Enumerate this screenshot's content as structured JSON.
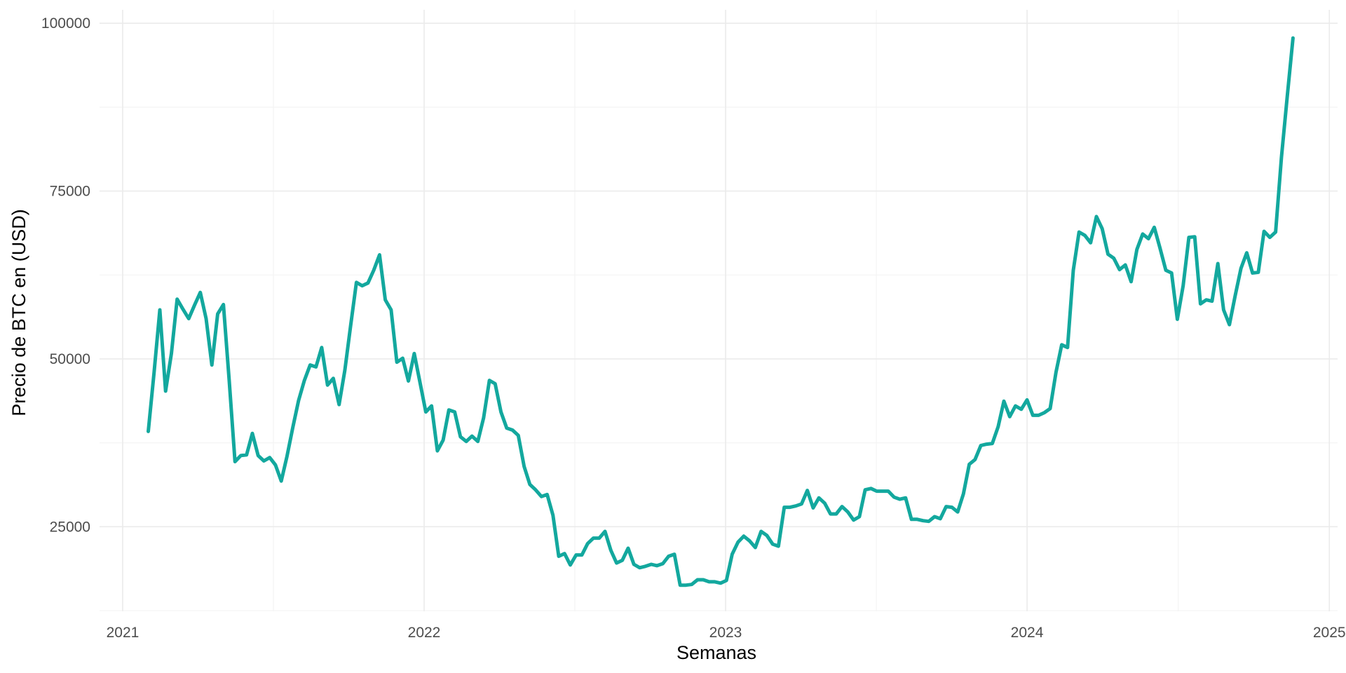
{
  "chart_data": {
    "type": "line",
    "title": "",
    "xlabel": "Semanas",
    "ylabel": "Precio de BTC en (USD)",
    "xlim": [
      "2020-12-04",
      "2025-01-11"
    ],
    "ylim": [
      12400,
      102000
    ],
    "x_ticks": [
      "2021",
      "2022",
      "2023",
      "2024",
      "2025"
    ],
    "y_ticks": [
      "25000",
      "50000",
      "75000",
      "100000"
    ],
    "grid": true,
    "legend": "none",
    "line_color": "#13A89E",
    "series": [
      {
        "points": [
          [
            "2021-02-01",
            39200
          ],
          [
            "2021-02-08",
            48000
          ],
          [
            "2021-02-15",
            57300
          ],
          [
            "2021-02-22",
            45200
          ],
          [
            "2021-03-01",
            50800
          ],
          [
            "2021-03-08",
            58900
          ],
          [
            "2021-03-15",
            57400
          ],
          [
            "2021-03-22",
            56000
          ],
          [
            "2021-03-29",
            58000
          ],
          [
            "2021-04-05",
            59900
          ],
          [
            "2021-04-12",
            56000
          ],
          [
            "2021-04-19",
            49100
          ],
          [
            "2021-04-26",
            56700
          ],
          [
            "2021-05-03",
            58100
          ],
          [
            "2021-05-10",
            46700
          ],
          [
            "2021-05-17",
            34700
          ],
          [
            "2021-05-24",
            35600
          ],
          [
            "2021-05-31",
            35700
          ],
          [
            "2021-06-07",
            38900
          ],
          [
            "2021-06-14",
            35600
          ],
          [
            "2021-06-21",
            34800
          ],
          [
            "2021-06-28",
            35300
          ],
          [
            "2021-07-05",
            34200
          ],
          [
            "2021-07-12",
            31800
          ],
          [
            "2021-07-19",
            35500
          ],
          [
            "2021-07-26",
            39800
          ],
          [
            "2021-08-02",
            43800
          ],
          [
            "2021-08-09",
            46800
          ],
          [
            "2021-08-16",
            49100
          ],
          [
            "2021-08-23",
            48800
          ],
          [
            "2021-08-30",
            51700
          ],
          [
            "2021-09-06",
            46100
          ],
          [
            "2021-09-13",
            47100
          ],
          [
            "2021-09-20",
            43200
          ],
          [
            "2021-09-27",
            48300
          ],
          [
            "2021-10-04",
            54900
          ],
          [
            "2021-10-11",
            61400
          ],
          [
            "2021-10-18",
            60900
          ],
          [
            "2021-10-25",
            61300
          ],
          [
            "2021-11-01",
            63200
          ],
          [
            "2021-11-08",
            65500
          ],
          [
            "2021-11-15",
            58800
          ],
          [
            "2021-11-22",
            57300
          ],
          [
            "2021-11-29",
            49500
          ],
          [
            "2021-12-06",
            50100
          ],
          [
            "2021-12-13",
            46700
          ],
          [
            "2021-12-20",
            50800
          ],
          [
            "2021-12-27",
            46500
          ],
          [
            "2022-01-03",
            42100
          ],
          [
            "2022-01-10",
            43000
          ],
          [
            "2022-01-17",
            36300
          ],
          [
            "2022-01-24",
            37900
          ],
          [
            "2022-01-31",
            42400
          ],
          [
            "2022-02-07",
            42100
          ],
          [
            "2022-02-14",
            38400
          ],
          [
            "2022-02-21",
            37700
          ],
          [
            "2022-02-28",
            38500
          ],
          [
            "2022-03-07",
            37700
          ],
          [
            "2022-03-14",
            41200
          ],
          [
            "2022-03-21",
            46800
          ],
          [
            "2022-03-28",
            46300
          ],
          [
            "2022-04-04",
            42100
          ],
          [
            "2022-04-11",
            39700
          ],
          [
            "2022-04-18",
            39400
          ],
          [
            "2022-04-25",
            38600
          ],
          [
            "2022-05-02",
            34000
          ],
          [
            "2022-05-09",
            31300
          ],
          [
            "2022-05-16",
            30500
          ],
          [
            "2022-05-23",
            29500
          ],
          [
            "2022-05-30",
            29800
          ],
          [
            "2022-06-06",
            26700
          ],
          [
            "2022-06-13",
            20600
          ],
          [
            "2022-06-20",
            21000
          ],
          [
            "2022-06-27",
            19300
          ],
          [
            "2022-07-04",
            20800
          ],
          [
            "2022-07-11",
            20800
          ],
          [
            "2022-07-18",
            22500
          ],
          [
            "2022-07-25",
            23300
          ],
          [
            "2022-08-01",
            23300
          ],
          [
            "2022-08-08",
            24300
          ],
          [
            "2022-08-15",
            21500
          ],
          [
            "2022-08-22",
            19600
          ],
          [
            "2022-08-29",
            20000
          ],
          [
            "2022-09-05",
            21800
          ],
          [
            "2022-09-12",
            19400
          ],
          [
            "2022-09-19",
            18900
          ],
          [
            "2022-09-26",
            19100
          ],
          [
            "2022-10-03",
            19400
          ],
          [
            "2022-10-10",
            19200
          ],
          [
            "2022-10-17",
            19500
          ],
          [
            "2022-10-24",
            20600
          ],
          [
            "2022-10-31",
            20900
          ],
          [
            "2022-11-07",
            16300
          ],
          [
            "2022-11-14",
            16300
          ],
          [
            "2022-11-21",
            16400
          ],
          [
            "2022-11-28",
            17100
          ],
          [
            "2022-12-05",
            17100
          ],
          [
            "2022-12-12",
            16800
          ],
          [
            "2022-12-19",
            16800
          ],
          [
            "2022-12-26",
            16600
          ],
          [
            "2023-01-02",
            17000
          ],
          [
            "2023-01-09",
            20900
          ],
          [
            "2023-01-16",
            22700
          ],
          [
            "2023-01-23",
            23600
          ],
          [
            "2023-01-30",
            22900
          ],
          [
            "2023-02-06",
            21900
          ],
          [
            "2023-02-13",
            24300
          ],
          [
            "2023-02-20",
            23700
          ],
          [
            "2023-02-27",
            22400
          ],
          [
            "2023-03-06",
            22100
          ],
          [
            "2023-03-13",
            27900
          ],
          [
            "2023-03-20",
            27900
          ],
          [
            "2023-03-27",
            28100
          ],
          [
            "2023-04-03",
            28400
          ],
          [
            "2023-04-10",
            30400
          ],
          [
            "2023-04-17",
            27800
          ],
          [
            "2023-04-24",
            29300
          ],
          [
            "2023-05-01",
            28500
          ],
          [
            "2023-05-08",
            26900
          ],
          [
            "2023-05-15",
            26900
          ],
          [
            "2023-05-22",
            28000
          ],
          [
            "2023-05-29",
            27200
          ],
          [
            "2023-06-05",
            26000
          ],
          [
            "2023-06-12",
            26500
          ],
          [
            "2023-06-19",
            30500
          ],
          [
            "2023-06-26",
            30700
          ],
          [
            "2023-07-03",
            30300
          ],
          [
            "2023-07-10",
            30300
          ],
          [
            "2023-07-17",
            30300
          ],
          [
            "2023-07-24",
            29400
          ],
          [
            "2023-07-31",
            29100
          ],
          [
            "2023-08-07",
            29300
          ],
          [
            "2023-08-14",
            26100
          ],
          [
            "2023-08-21",
            26100
          ],
          [
            "2023-08-28",
            25900
          ],
          [
            "2023-09-04",
            25800
          ],
          [
            "2023-09-11",
            26500
          ],
          [
            "2023-09-18",
            26200
          ],
          [
            "2023-09-25",
            28000
          ],
          [
            "2023-10-02",
            27900
          ],
          [
            "2023-10-09",
            27200
          ],
          [
            "2023-10-16",
            29900
          ],
          [
            "2023-10-23",
            34300
          ],
          [
            "2023-10-30",
            35000
          ],
          [
            "2023-11-06",
            37100
          ],
          [
            "2023-11-13",
            37300
          ],
          [
            "2023-11-20",
            37400
          ],
          [
            "2023-11-27",
            39900
          ],
          [
            "2023-12-04",
            43700
          ],
          [
            "2023-12-11",
            41400
          ],
          [
            "2023-12-18",
            43000
          ],
          [
            "2023-12-25",
            42500
          ],
          [
            "2024-01-01",
            43900
          ],
          [
            "2024-01-08",
            41600
          ],
          [
            "2024-01-15",
            41600
          ],
          [
            "2024-01-22",
            42000
          ],
          [
            "2024-01-29",
            42600
          ],
          [
            "2024-02-05",
            48000
          ],
          [
            "2024-02-12",
            52100
          ],
          [
            "2024-02-19",
            51700
          ],
          [
            "2024-02-26",
            63200
          ],
          [
            "2024-03-04",
            68900
          ],
          [
            "2024-03-11",
            68400
          ],
          [
            "2024-03-18",
            67300
          ],
          [
            "2024-03-25",
            71200
          ],
          [
            "2024-04-01",
            69400
          ],
          [
            "2024-04-08",
            65600
          ],
          [
            "2024-04-15",
            65000
          ],
          [
            "2024-04-22",
            63300
          ],
          [
            "2024-04-29",
            64000
          ],
          [
            "2024-05-06",
            61500
          ],
          [
            "2024-05-13",
            66300
          ],
          [
            "2024-05-20",
            68600
          ],
          [
            "2024-05-27",
            67900
          ],
          [
            "2024-06-03",
            69600
          ],
          [
            "2024-06-10",
            66500
          ],
          [
            "2024-06-17",
            63200
          ],
          [
            "2024-06-24",
            62800
          ],
          [
            "2024-07-01",
            55900
          ],
          [
            "2024-07-08",
            60900
          ],
          [
            "2024-07-15",
            68100
          ],
          [
            "2024-07-22",
            68200
          ],
          [
            "2024-07-29",
            58200
          ],
          [
            "2024-08-05",
            58800
          ],
          [
            "2024-08-12",
            58600
          ],
          [
            "2024-08-19",
            64200
          ],
          [
            "2024-08-26",
            57300
          ],
          [
            "2024-09-02",
            55100
          ],
          [
            "2024-09-09",
            59400
          ],
          [
            "2024-09-16",
            63500
          ],
          [
            "2024-09-23",
            65800
          ],
          [
            "2024-09-30",
            62800
          ],
          [
            "2024-10-07",
            62900
          ],
          [
            "2024-10-14",
            69000
          ],
          [
            "2024-10-21",
            68100
          ],
          [
            "2024-10-28",
            68900
          ],
          [
            "2024-11-04",
            80000
          ],
          [
            "2024-11-11",
            89000
          ],
          [
            "2024-11-18",
            97800
          ]
        ]
      }
    ]
  }
}
